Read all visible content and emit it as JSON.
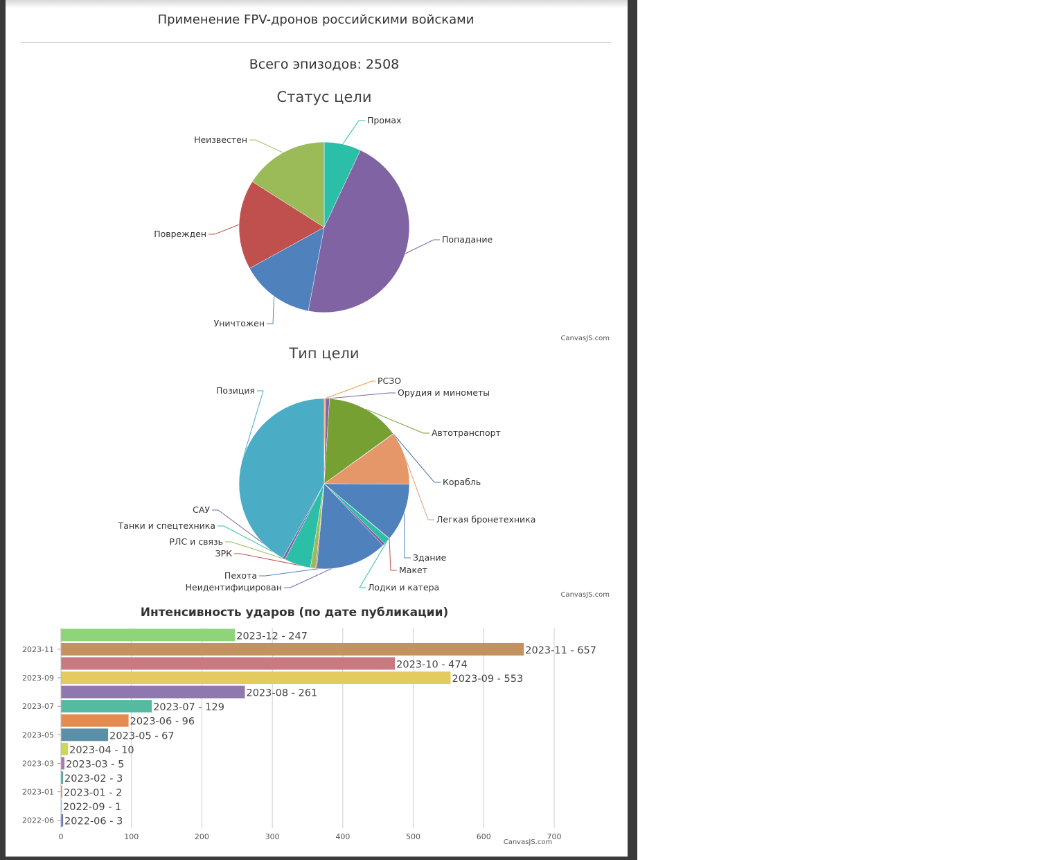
{
  "page": {
    "title": "Применение FPV-дронов российскими войсками",
    "total": "Всего эпизодов: 2508"
  },
  "chart_data": [
    {
      "type": "pie",
      "title": "Статус цели",
      "credit": "CanvasJS.com",
      "slices": [
        {
          "label": "Промах",
          "value": 7,
          "color": "#2bbfa8"
        },
        {
          "label": "Попадание",
          "value": 46,
          "color": "#7f63a3"
        },
        {
          "label": "Уничтожен",
          "value": 14,
          "color": "#4f81bd"
        },
        {
          "label": "Поврежден",
          "value": 17,
          "color": "#c0504d"
        },
        {
          "label": "Неизвестен",
          "value": 16,
          "color": "#9bbb59"
        }
      ]
    },
    {
      "type": "pie",
      "title": "Тип цели",
      "credit": "CanvasJS.com",
      "slices": [
        {
          "label": "РСЗО",
          "value": 0.3,
          "color": "#f79646"
        },
        {
          "label": "Орудия и минометы",
          "value": 0.7,
          "color": "#7f63a3"
        },
        {
          "label": "Автотранспорт",
          "value": 14,
          "color": "#77a033"
        },
        {
          "label": "Корабль",
          "value": 0.1,
          "color": "#4f6fa0"
        },
        {
          "label": "Легкая бронетехника",
          "value": 10,
          "color": "#e5976a"
        },
        {
          "label": "Здание",
          "value": 11,
          "color": "#4f81bd"
        },
        {
          "label": "Макет",
          "value": 0.1,
          "color": "#c0504d"
        },
        {
          "label": "Лодки и катера",
          "value": 1.2,
          "color": "#2bbfa8"
        },
        {
          "label": "Неидентифицирован",
          "value": 0.5,
          "color": "#7f63a3"
        },
        {
          "label": "Пехота",
          "value": 13.5,
          "color": "#4f81bd"
        },
        {
          "label": "ЗРК",
          "value": 0.2,
          "color": "#c0504d"
        },
        {
          "label": "РЛС и связь",
          "value": 1,
          "color": "#9bbb59"
        },
        {
          "label": "Танки и спецтехника",
          "value": 5,
          "color": "#2bbfa8"
        },
        {
          "label": "САУ",
          "value": 0.5,
          "color": "#7f63a3"
        },
        {
          "label": "Позиция",
          "value": 41.9,
          "color": "#4bacc6"
        }
      ]
    },
    {
      "type": "bar",
      "title": "Интенсивность ударов (по дате публикации)",
      "credit": "CanvasJS.com",
      "xlim": [
        0,
        700
      ],
      "xticks": [
        0,
        100,
        200,
        300,
        400,
        500,
        600,
        700
      ],
      "yticks": [
        "2023-11",
        "2023-09",
        "2023-07",
        "2023-05",
        "2023-03",
        "2023-01",
        "2022-06"
      ],
      "bars": [
        {
          "label": "2023-12 - 247",
          "category": "2023-12",
          "value": 247,
          "color": "#8fd47b"
        },
        {
          "label": "2023-11 - 657",
          "category": "2023-11",
          "value": 657,
          "color": "#c4925e"
        },
        {
          "label": "2023-10 - 474",
          "category": "2023-10",
          "value": 474,
          "color": "#c97a80"
        },
        {
          "label": "2023-09 - 553",
          "category": "2023-09",
          "value": 553,
          "color": "#e3cb5f"
        },
        {
          "label": "2023-08 - 261",
          "category": "2023-08",
          "value": 261,
          "color": "#8f78ad"
        },
        {
          "label": "2023-07 - 129",
          "category": "2023-07",
          "value": 129,
          "color": "#56b9a2"
        },
        {
          "label": "2023-06 - 96",
          "category": "2023-06",
          "value": 96,
          "color": "#e48b52"
        },
        {
          "label": "2023-05 - 67",
          "category": "2023-05",
          "value": 67,
          "color": "#5b8fa8"
        },
        {
          "label": "2023-04 - 10",
          "category": "2023-04",
          "value": 10,
          "color": "#ccd85a"
        },
        {
          "label": "2023-03 - 5",
          "category": "2023-03",
          "value": 5,
          "color": "#b178b0"
        },
        {
          "label": "2023-02 - 3",
          "category": "2023-02",
          "value": 3,
          "color": "#57a6a0"
        },
        {
          "label": "2023-01 - 2",
          "category": "2023-01",
          "value": 2,
          "color": "#e58a8a"
        },
        {
          "label": "2022-09 - 1",
          "category": "2022-09",
          "value": 1,
          "color": "#7fd4d8"
        },
        {
          "label": "2022-06 - 3",
          "category": "2022-06",
          "value": 3,
          "color": "#6f76b3"
        }
      ]
    }
  ]
}
